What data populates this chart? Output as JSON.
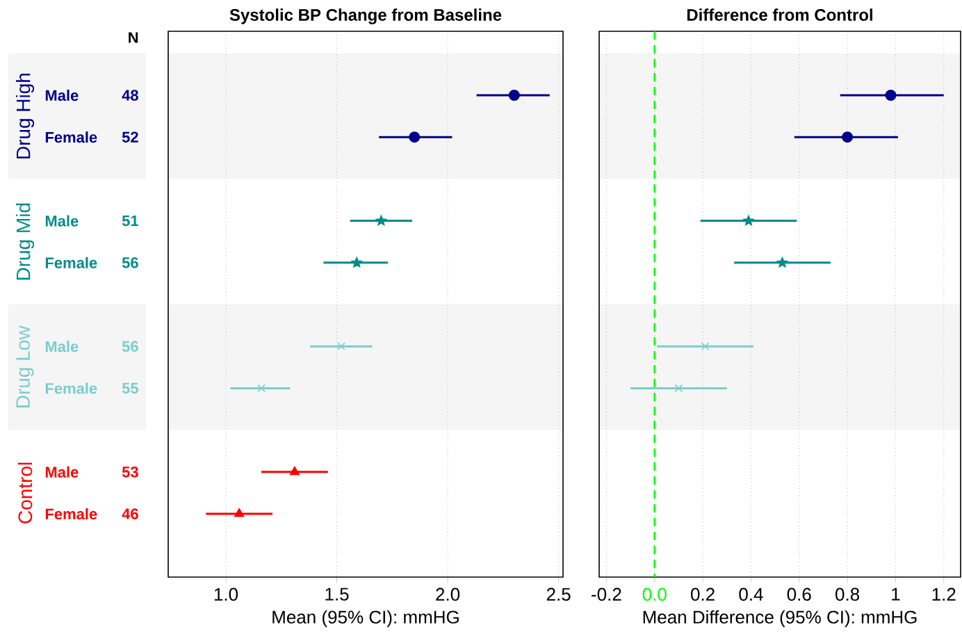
{
  "chart_data": [
    {
      "type": "scatter",
      "title": "Systolic BP Change from Baseline",
      "xlabel": "Mean (95% CI): mmHG",
      "orientation": "horizontal",
      "categories": [
        "Male",
        "Female",
        null,
        "Male",
        "Female",
        null,
        "Male",
        "Female",
        null,
        "Male",
        "Female"
      ],
      "series": [
        {
          "name": "Drug High",
          "color": "#00008b",
          "marker": "circle",
          "values": [
            2.3,
            1.85,
            null,
            null,
            null,
            null,
            null,
            null,
            null,
            null,
            null
          ],
          "errors": [
            [
              2.13,
              2.46
            ],
            [
              1.69,
              2.02
            ],
            null,
            null,
            null,
            null,
            null,
            null,
            null,
            null,
            null
          ]
        },
        {
          "name": "Drug Mid",
          "color": "#008b8b",
          "marker": "star",
          "values": [
            null,
            null,
            null,
            1.7,
            1.59,
            null,
            null,
            null,
            null,
            null,
            null
          ],
          "errors": [
            null,
            null,
            null,
            [
              1.56,
              1.84
            ],
            [
              1.44,
              1.73
            ],
            null,
            null,
            null,
            null,
            null,
            null
          ]
        },
        {
          "name": "Drug Low",
          "color": "#79cdcd",
          "marker": "cross",
          "values": [
            null,
            null,
            null,
            null,
            null,
            null,
            1.52,
            1.16,
            null,
            null,
            null
          ],
          "errors": [
            null,
            null,
            null,
            null,
            null,
            null,
            [
              1.38,
              1.66
            ],
            [
              1.02,
              1.29
            ],
            null,
            null,
            null
          ]
        },
        {
          "name": "Control",
          "color": "#ff0000",
          "marker": "triangle",
          "values": [
            null,
            null,
            null,
            null,
            null,
            null,
            null,
            null,
            null,
            1.31,
            1.06
          ],
          "errors": [
            null,
            null,
            null,
            null,
            null,
            null,
            null,
            null,
            null,
            [
              1.16,
              1.46
            ],
            [
              0.91,
              1.21
            ]
          ]
        }
      ],
      "annotations": [
        "N",
        "48",
        "52",
        "51",
        "56",
        "56",
        "55",
        "53",
        "46"
      ],
      "xlim": [
        0.74,
        2.52
      ],
      "xticks": [
        {
          "value": 1,
          "label": "1.0"
        },
        1.5,
        {
          "value": 2,
          "label": "2.0"
        },
        2.5
      ],
      "grid": "x"
    },
    {
      "type": "scatter",
      "title": "Difference from Control",
      "xlabel": "Mean Difference (95% CI): mmHG",
      "orientation": "horizontal",
      "categories": [
        null,
        null,
        null,
        null,
        null,
        null,
        null,
        null,
        null,
        null,
        null
      ],
      "series": [
        {
          "color": "#00008b",
          "marker": "circle",
          "values": [
            0.98,
            0.8,
            null,
            null,
            null,
            null,
            null,
            null,
            null,
            null,
            null
          ],
          "errors": [
            [
              0.77,
              1.2
            ],
            [
              0.58,
              1.01
            ],
            null,
            null,
            null,
            null,
            null,
            null,
            null,
            null,
            null
          ]
        },
        {
          "color": "#008b8b",
          "marker": "star",
          "values": [
            null,
            null,
            null,
            0.39,
            0.53,
            null,
            null,
            null,
            null,
            null,
            null
          ],
          "errors": [
            null,
            null,
            null,
            [
              0.19,
              0.59
            ],
            [
              0.33,
              0.73
            ],
            null,
            null,
            null,
            null,
            null,
            null
          ]
        },
        {
          "color": "#79cdcd",
          "marker": "cross",
          "values": [
            null,
            null,
            null,
            null,
            null,
            null,
            0.21,
            0.1,
            null,
            null,
            null
          ],
          "errors": [
            null,
            null,
            null,
            null,
            null,
            null,
            [
              0.01,
              0.41
            ],
            [
              -0.1,
              0.3
            ],
            null,
            null,
            null
          ]
        }
      ],
      "ref_lines": [
        {
          "axis": "x",
          "value": 0,
          "color": "#00ff00",
          "line_style": "dashed"
        }
      ],
      "tick_labels": "x",
      "xlim": [
        -0.23,
        1.27
      ],
      "xticks": [
        -0.2,
        {
          "value": 0,
          "label": "0.0"
        },
        0.2,
        0.4,
        0.6,
        0.8,
        1,
        1.2
      ],
      "grid": "x"
    }
  ]
}
